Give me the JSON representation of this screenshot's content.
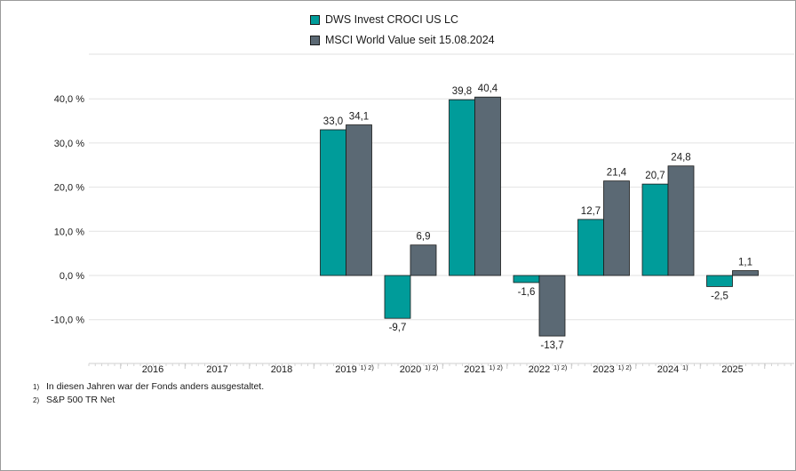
{
  "chart_data": {
    "type": "bar",
    "categories": [
      "2016",
      "2017",
      "2018",
      "2019",
      "2020",
      "2021",
      "2022",
      "2023",
      "2024",
      "2025"
    ],
    "category_footnotes": [
      "",
      "",
      "",
      "1) 2)",
      "1) 2)",
      "1) 2)",
      "1) 2)",
      "1) 2)",
      "1)",
      ""
    ],
    "series": [
      {
        "name": "DWS Invest CROCI US LC",
        "color": "#009c9a",
        "values": [
          null,
          null,
          null,
          33.0,
          -9.7,
          39.8,
          -1.6,
          12.7,
          20.7,
          -2.5
        ],
        "labels": [
          "",
          "",
          "",
          "33,0",
          "-9,7",
          "39,8",
          "-1,6",
          "12,7",
          "20,7",
          "-2,5"
        ]
      },
      {
        "name": "MSCI World Value seit 15.08.2024",
        "color": "#5b6974",
        "values": [
          null,
          null,
          null,
          34.1,
          6.9,
          40.4,
          -13.7,
          21.4,
          24.8,
          1.1
        ],
        "labels": [
          "",
          "",
          "",
          "34,1",
          "6,9",
          "40,4",
          "-13,7",
          "21,4",
          "24,8",
          "1,1"
        ]
      }
    ],
    "ylim": [
      -15,
      45
    ],
    "yticks": [
      -10,
      0,
      10,
      20,
      30,
      40
    ],
    "ytick_labels": [
      "-10,0 %",
      "0,0 %",
      "10,0 %",
      "20,0 %",
      "30,0 %",
      "40,0 %"
    ],
    "grid": true,
    "legend_position": "top-center"
  },
  "footnotes": [
    {
      "mark": "1)",
      "text": "In diesen Jahren war der Fonds anders ausgestaltet."
    },
    {
      "mark": "2)",
      "text": "S&P 500 TR Net"
    }
  ]
}
